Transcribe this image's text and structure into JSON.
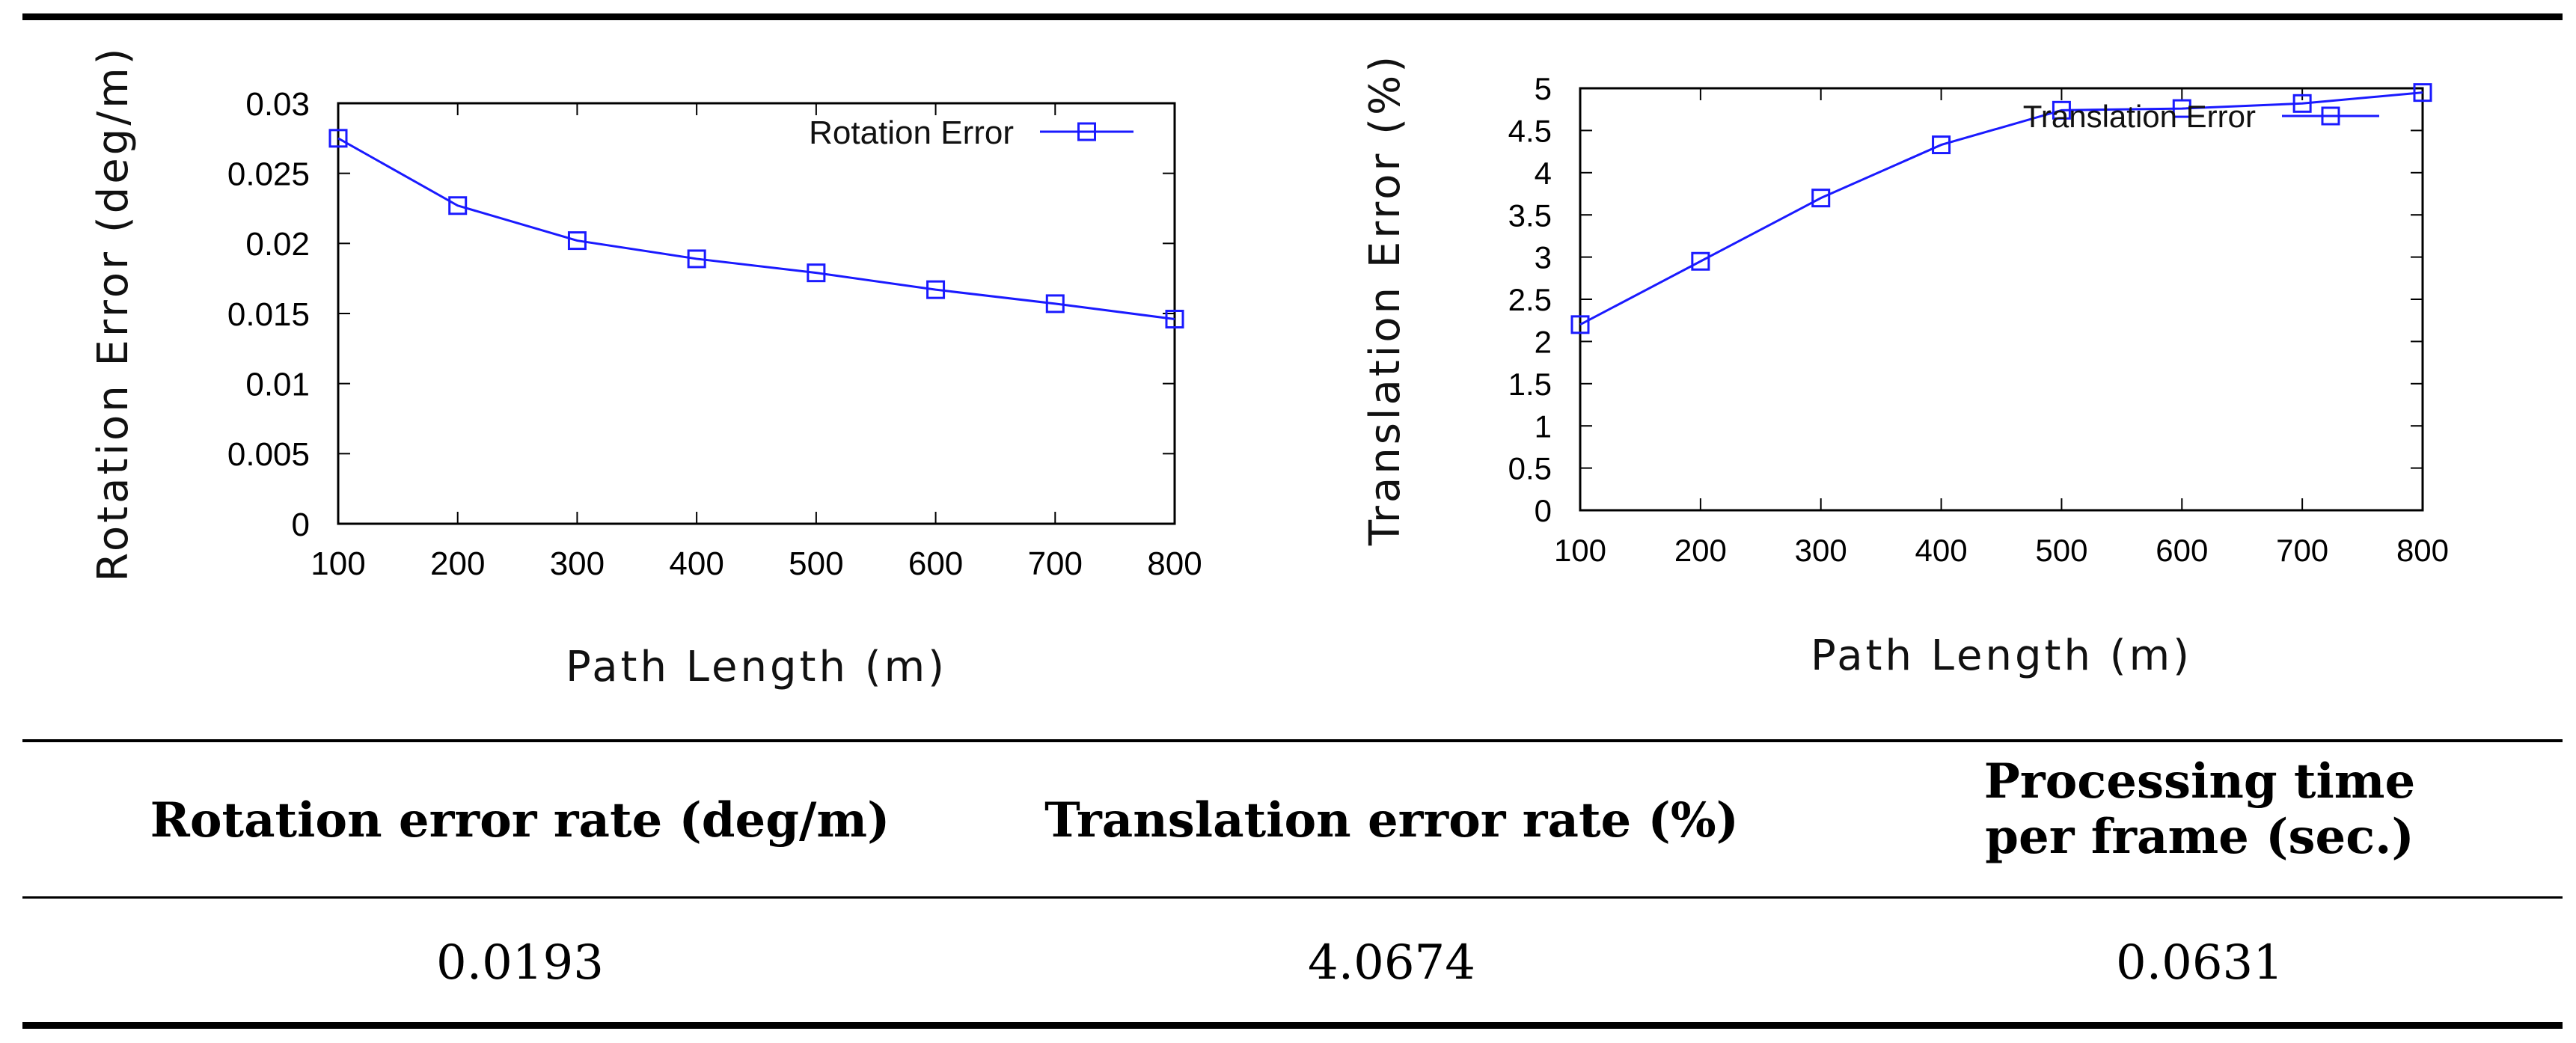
{
  "chart_data": [
    {
      "type": "line",
      "title": "",
      "xlabel": "Path Length (m)",
      "ylabel": "Rotation Error (deg/m)",
      "x": [
        100,
        200,
        300,
        400,
        500,
        600,
        700,
        800
      ],
      "series": [
        {
          "name": "Rotation Error",
          "values": [
            0.0275,
            0.0227,
            0.0202,
            0.0189,
            0.0179,
            0.0167,
            0.0157,
            0.0146
          ]
        }
      ],
      "xlim": [
        100,
        800
      ],
      "ylim": [
        0,
        0.03
      ],
      "xticks": [
        "100",
        "200",
        "300",
        "400",
        "500",
        "600",
        "700",
        "800"
      ],
      "yticks": [
        "0",
        "0.005",
        "0.01",
        "0.015",
        "0.02",
        "0.025",
        "0.03"
      ],
      "legend": "top-right",
      "grid": false,
      "color": "#1a1aff"
    },
    {
      "type": "line",
      "title": "",
      "xlabel": "Path Length (m)",
      "ylabel": "Translation Error (%)",
      "x": [
        100,
        200,
        300,
        400,
        500,
        600,
        700,
        800
      ],
      "series": [
        {
          "name": "Translation Error",
          "values": [
            2.2,
            2.95,
            3.7,
            4.33,
            4.74,
            4.76,
            4.82,
            4.95
          ]
        }
      ],
      "xlim": [
        100,
        800
      ],
      "ylim": [
        0,
        5
      ],
      "xticks": [
        "100",
        "200",
        "300",
        "400",
        "500",
        "600",
        "700",
        "800"
      ],
      "yticks": [
        "0",
        "0.5",
        "1",
        "1.5",
        "2",
        "2.5",
        "3",
        "3.5",
        "4",
        "4.5",
        "5"
      ],
      "legend": "top-right",
      "grid": false,
      "color": "#1a1aff"
    }
  ],
  "table": {
    "headers": {
      "rotation": "Rotation error rate (deg/m)",
      "translation": "Translation error rate (%)",
      "processing_line1": "Processing time",
      "processing_line2": "per frame (sec.)"
    },
    "values": {
      "rotation": "0.0193",
      "translation": "4.0674",
      "processing": "0.0631"
    }
  }
}
